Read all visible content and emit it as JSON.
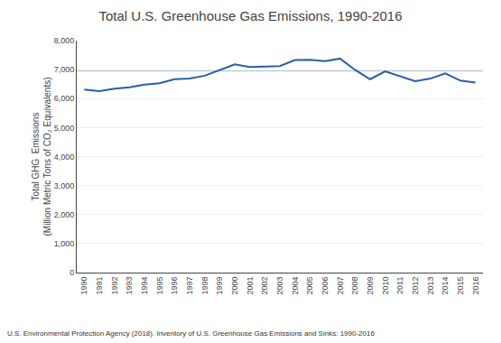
{
  "chart_data": {
    "type": "line",
    "title": "Total U.S. Greenhouse Gas Emissions, 1990-2016",
    "ylabel": "Total GHG  Emissions\n(Million Metric Tons of CO₂ Equivalents)",
    "footnote": "U.S. Environmental Protection Agency (2018). Inventory of U.S. Greenhouse Gas Emissions and Sinks: 1990-2016",
    "x": [
      1990,
      1991,
      1992,
      1993,
      1994,
      1995,
      1996,
      1997,
      1998,
      1999,
      2000,
      2001,
      2002,
      2003,
      2004,
      2005,
      2006,
      2007,
      2008,
      2009,
      2010,
      2011,
      2012,
      2013,
      2014,
      2015,
      2016
    ],
    "values": [
      6310,
      6260,
      6340,
      6390,
      6480,
      6530,
      6670,
      6690,
      6790,
      6980,
      7180,
      7090,
      7110,
      7120,
      7330,
      7340,
      7290,
      7380,
      6990,
      6670,
      6940,
      6760,
      6600,
      6690,
      6870,
      6620,
      6550
    ],
    "color": "#2b5da8",
    "xlim": [
      1989.5,
      2016.5
    ],
    "xticks": [
      1990,
      1991,
      1992,
      1993,
      1994,
      1995,
      1996,
      1997,
      1998,
      1999,
      2000,
      2001,
      2002,
      2003,
      2004,
      2005,
      2006,
      2007,
      2008,
      2009,
      2010,
      2011,
      2012,
      2013,
      2014,
      2015,
      2016
    ],
    "ylim": [
      0,
      8000
    ],
    "yticks": [
      0,
      {
        "value": 1000,
        "label": "1,000"
      },
      {
        "value": 2000,
        "label": "2,000"
      },
      {
        "value": 3000,
        "label": "3,000"
      },
      {
        "value": 4000,
        "label": "4,000"
      },
      {
        "value": 5000,
        "label": "5,000"
      },
      {
        "value": 6000,
        "label": "6,000"
      },
      {
        "value": 7000,
        "label": "7,000"
      },
      {
        "value": 8000,
        "label": "8,000"
      }
    ],
    "grid": true,
    "hline": {
      "value": 6960,
      "color": "#b8cfe0"
    }
  }
}
